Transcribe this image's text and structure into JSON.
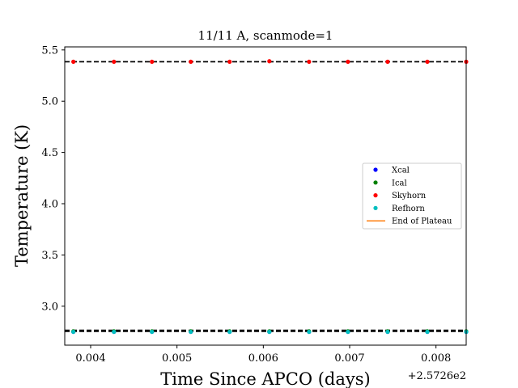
{
  "chart_data": {
    "type": "scatter",
    "title": "11/11 A, scanmode=1",
    "xlabel": "Time Since APCO (days)",
    "ylabel": "Temperature (K)",
    "x_offset_label": "+2.5726e2",
    "xlim": [
      257.2637,
      257.26835
    ],
    "ylim": [
      2.62,
      5.53
    ],
    "xticks": [
      257.264,
      257.265,
      257.266,
      257.267,
      257.268
    ],
    "xtick_labels": [
      "0.004",
      "0.005",
      "0.006",
      "0.007",
      "0.008"
    ],
    "yticks": [
      3.0,
      3.5,
      4.0,
      4.5,
      5.0,
      5.5
    ],
    "ytick_labels": [
      "3.0",
      "3.5",
      "4.0",
      "4.5",
      "5.0",
      "5.5"
    ],
    "grid": false,
    "legend_position": "center-right",
    "x": [
      257.2638,
      257.26427,
      257.26471,
      257.26516,
      257.26561,
      257.26607,
      257.26653,
      257.26698,
      257.26744,
      257.2679,
      257.26835
    ],
    "series": [
      {
        "name": "Xcal",
        "color": "#0000ff",
        "values": [
          2.75,
          2.75,
          2.75,
          2.75,
          2.75,
          2.75,
          2.75,
          2.75,
          2.75,
          2.75,
          2.75
        ]
      },
      {
        "name": "Ical",
        "color": "#008000",
        "values": [
          2.755,
          2.755,
          2.755,
          2.755,
          2.755,
          2.755,
          2.755,
          2.755,
          2.755,
          2.755,
          2.755
        ]
      },
      {
        "name": "Skyhorn",
        "color": "#ff0000",
        "values": [
          5.385,
          5.385,
          5.385,
          5.385,
          5.385,
          5.39,
          5.385,
          5.385,
          5.385,
          5.385,
          5.385
        ]
      },
      {
        "name": "Refhorn",
        "color": "#00bfbf",
        "values": [
          2.75,
          2.75,
          2.75,
          2.75,
          2.75,
          2.75,
          2.75,
          2.75,
          2.75,
          2.75,
          2.75
        ]
      },
      {
        "name": "End of Plateau",
        "color": "#ff7f0e",
        "values": []
      }
    ],
    "reference_lines": [
      {
        "y": 5.385,
        "style": "dashed",
        "color": "#000000"
      },
      {
        "y": 2.765,
        "style": "dashed",
        "color": "#000000"
      },
      {
        "y": 2.755,
        "style": "dashed",
        "color": "#000000"
      }
    ]
  }
}
